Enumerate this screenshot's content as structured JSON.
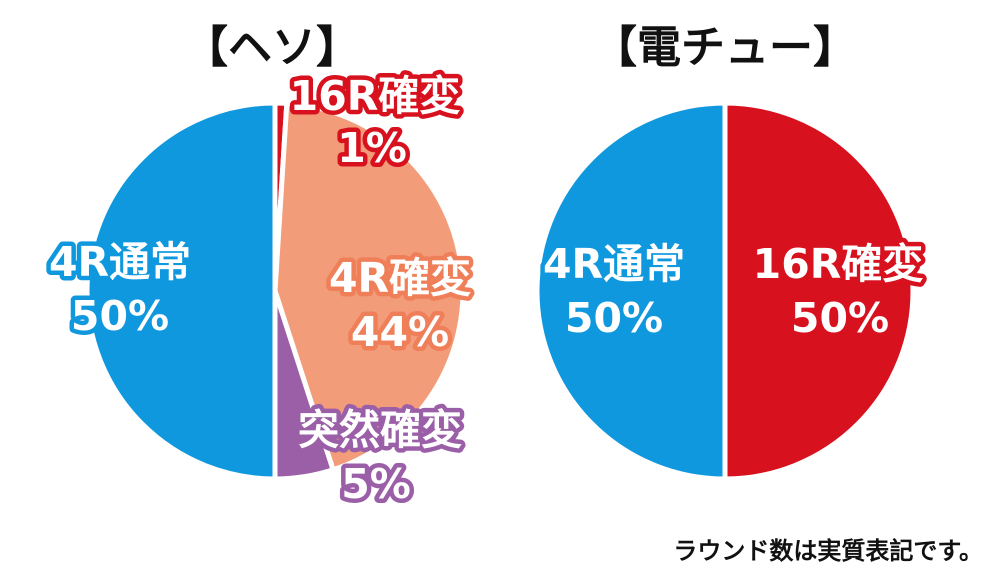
{
  "note": "ラウンド数は実質表記です。",
  "chart_data": [
    {
      "type": "pie",
      "title": "【ヘソ】",
      "slices": [
        {
          "label": "16R確変",
          "percent_label": "1%",
          "value": 1,
          "color": "#d7111e"
        },
        {
          "label": "4R確変",
          "percent_label": "44%",
          "value": 44,
          "color": "#f39c7a"
        },
        {
          "label": "突然確変",
          "percent_label": "5%",
          "value": 5,
          "color": "#9b5fa8"
        },
        {
          "label": "4R通常",
          "percent_label": "50%",
          "value": 50,
          "color": "#0f98dd"
        }
      ]
    },
    {
      "type": "pie",
      "title": "【電チュー】",
      "slices": [
        {
          "label": "16R確変",
          "percent_label": "50%",
          "value": 50,
          "color": "#d7111e"
        },
        {
          "label": "4R通常",
          "percent_label": "50%",
          "value": 50,
          "color": "#0f98dd"
        }
      ]
    }
  ]
}
